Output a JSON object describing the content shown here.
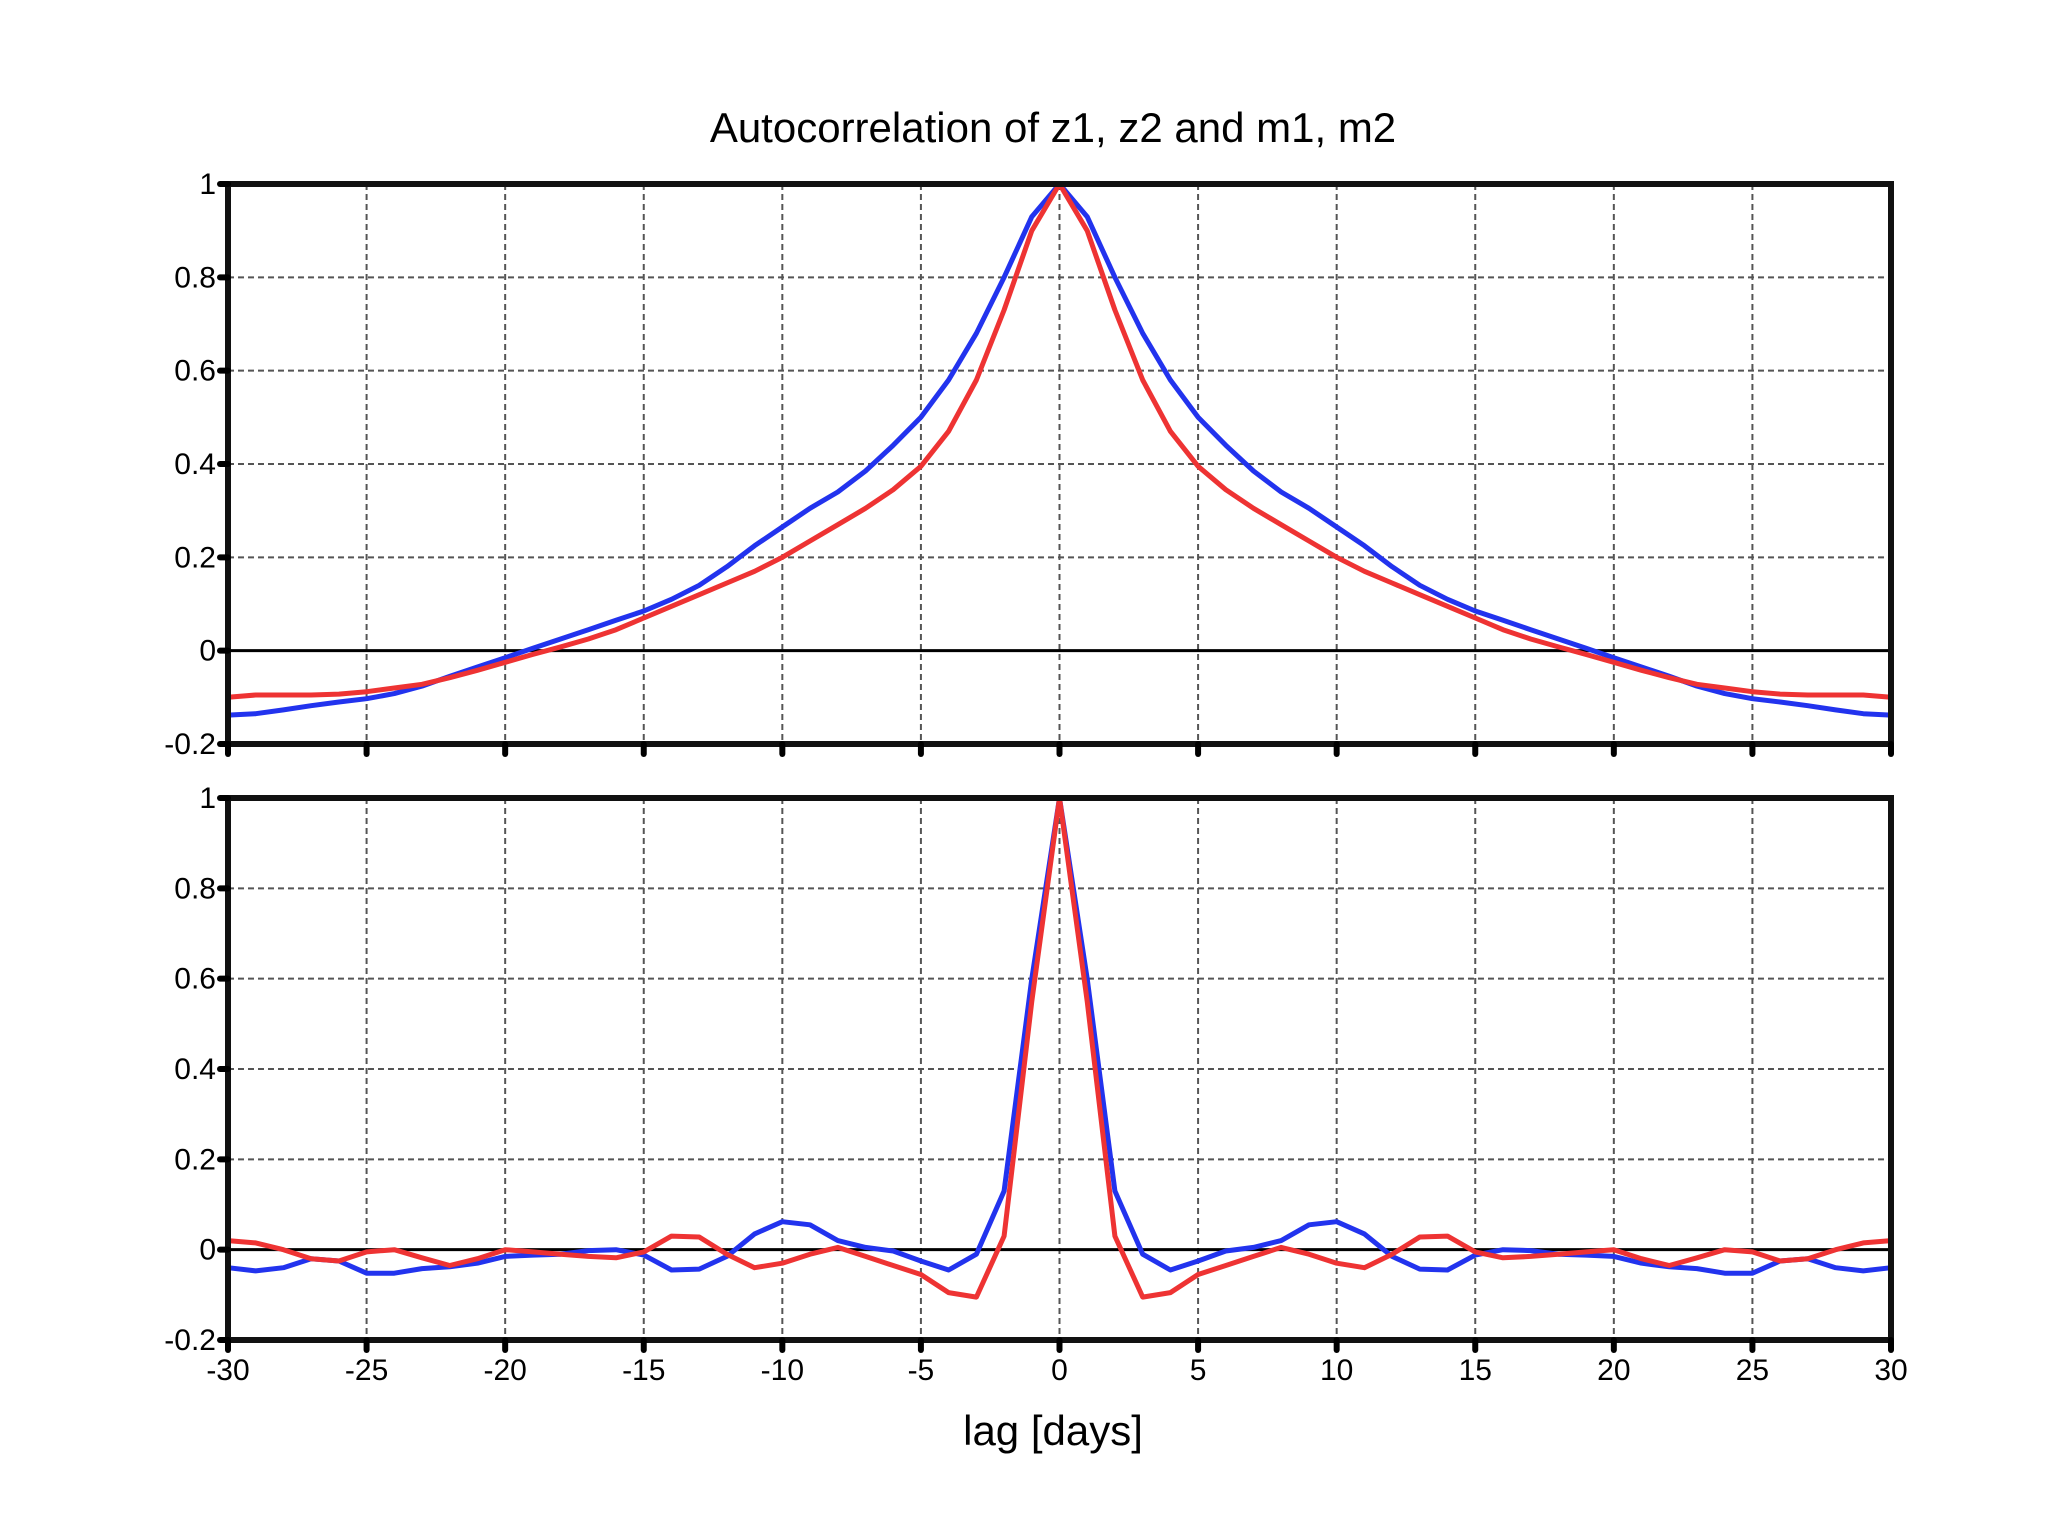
{
  "chart_data": [
    {
      "type": "line",
      "title": "Autocorrelation of z1, z2 and m1, m2",
      "xlabel": "",
      "ylabel": "",
      "xlim": [
        -30,
        30
      ],
      "ylim": [
        -0.2,
        1
      ],
      "xticks": [
        -30,
        -25,
        -20,
        -15,
        -10,
        -5,
        0,
        5,
        10,
        15,
        20,
        25,
        30
      ],
      "yticks": [
        -0.2,
        0,
        0.2,
        0.4,
        0.6,
        0.8,
        1
      ],
      "ytick_labels": [
        "-0.2",
        "0",
        "0.2",
        "0.4",
        "0.6",
        "0.8",
        "1"
      ],
      "grid": true,
      "x": [
        -30,
        -29,
        -28,
        -27,
        -26,
        -25,
        -24,
        -23,
        -22,
        -21,
        -20,
        -19,
        -18,
        -17,
        -16,
        -15,
        -14,
        -13,
        -12,
        -11,
        -10,
        -9,
        -8,
        -7,
        -6,
        -5,
        -4,
        -3,
        -2,
        -1,
        0,
        1,
        2,
        3,
        4,
        5,
        6,
        7,
        8,
        9,
        10,
        11,
        12,
        13,
        14,
        15,
        16,
        17,
        18,
        19,
        20,
        21,
        22,
        23,
        24,
        25,
        26,
        27,
        28,
        29,
        30
      ],
      "series": [
        {
          "color": "#2233ee",
          "values": [
            -0.138,
            -0.135,
            -0.127,
            -0.118,
            -0.11,
            -0.103,
            -0.092,
            -0.076,
            -0.055,
            -0.035,
            -0.015,
            0.005,
            0.025,
            0.045,
            0.065,
            0.085,
            0.11,
            0.14,
            0.18,
            0.225,
            0.265,
            0.305,
            0.34,
            0.385,
            0.44,
            0.5,
            0.58,
            0.68,
            0.8,
            0.93,
            1.0,
            0.93,
            0.8,
            0.68,
            0.58,
            0.5,
            0.44,
            0.385,
            0.34,
            0.305,
            0.265,
            0.225,
            0.18,
            0.14,
            0.11,
            0.085,
            0.065,
            0.045,
            0.025,
            0.005,
            -0.015,
            -0.035,
            -0.055,
            -0.076,
            -0.092,
            -0.103,
            -0.11,
            -0.118,
            -0.127,
            -0.135,
            -0.138
          ]
        },
        {
          "color": "#ee3333",
          "values": [
            -0.1,
            -0.095,
            -0.095,
            -0.095,
            -0.093,
            -0.088,
            -0.08,
            -0.072,
            -0.058,
            -0.042,
            -0.025,
            -0.008,
            0.008,
            0.025,
            0.045,
            0.07,
            0.095,
            0.12,
            0.145,
            0.17,
            0.2,
            0.235,
            0.27,
            0.305,
            0.345,
            0.395,
            0.47,
            0.58,
            0.73,
            0.9,
            1.0,
            0.9,
            0.73,
            0.58,
            0.47,
            0.395,
            0.345,
            0.305,
            0.27,
            0.235,
            0.2,
            0.17,
            0.145,
            0.12,
            0.095,
            0.07,
            0.045,
            0.025,
            0.008,
            -0.008,
            -0.025,
            -0.042,
            -0.058,
            -0.072,
            -0.08,
            -0.088,
            -0.093,
            -0.095,
            -0.095,
            -0.095,
            -0.1
          ]
        }
      ]
    },
    {
      "type": "line",
      "title": "",
      "xlabel": "lag [days]",
      "ylabel": "",
      "xlim": [
        -30,
        30
      ],
      "ylim": [
        -0.2,
        1
      ],
      "xticks": [
        -30,
        -25,
        -20,
        -15,
        -10,
        -5,
        0,
        5,
        10,
        15,
        20,
        25,
        30
      ],
      "xtick_labels": [
        "-30",
        "-25",
        "-20",
        "-15",
        "-10",
        "-5",
        "0",
        "5",
        "10",
        "15",
        "20",
        "25",
        "30"
      ],
      "yticks": [
        -0.2,
        0,
        0.2,
        0.4,
        0.6,
        0.8,
        1
      ],
      "ytick_labels": [
        "-0.2",
        "0",
        "0.2",
        "0.4",
        "0.6",
        "0.8",
        "1"
      ],
      "grid": true,
      "x": [
        -30,
        -29,
        -28,
        -27,
        -26,
        -25,
        -24,
        -23,
        -22,
        -21,
        -20,
        -19,
        -18,
        -17,
        -16,
        -15,
        -14,
        -13,
        -12,
        -11,
        -10,
        -9,
        -8,
        -7,
        -6,
        -5,
        -4,
        -3,
        -2,
        -1,
        0,
        1,
        2,
        3,
        4,
        5,
        6,
        7,
        8,
        9,
        10,
        11,
        12,
        13,
        14,
        15,
        16,
        17,
        18,
        19,
        20,
        21,
        22,
        23,
        24,
        25,
        26,
        27,
        28,
        29,
        30
      ],
      "series": [
        {
          "color": "#2233ee",
          "values": [
            -0.04,
            -0.047,
            -0.04,
            -0.02,
            -0.025,
            -0.052,
            -0.052,
            -0.042,
            -0.038,
            -0.03,
            -0.015,
            -0.012,
            -0.01,
            -0.002,
            0.0,
            -0.012,
            -0.045,
            -0.043,
            -0.015,
            0.035,
            0.062,
            0.055,
            0.02,
            0.005,
            -0.003,
            -0.025,
            -0.045,
            -0.01,
            0.13,
            0.6,
            1.0,
            0.6,
            0.13,
            -0.01,
            -0.045,
            -0.025,
            -0.003,
            0.005,
            0.02,
            0.055,
            0.062,
            0.035,
            -0.015,
            -0.043,
            -0.045,
            -0.012,
            0.0,
            -0.002,
            -0.01,
            -0.012,
            -0.015,
            -0.03,
            -0.038,
            -0.042,
            -0.052,
            -0.052,
            -0.025,
            -0.02,
            -0.04,
            -0.047,
            -0.04
          ]
        },
        {
          "color": "#ee3333",
          "values": [
            0.02,
            0.015,
            0.0,
            -0.02,
            -0.025,
            -0.005,
            0.0,
            -0.018,
            -0.035,
            -0.02,
            0.0,
            -0.005,
            -0.01,
            -0.015,
            -0.018,
            -0.005,
            0.03,
            0.028,
            -0.01,
            -0.04,
            -0.03,
            -0.01,
            0.005,
            -0.015,
            -0.035,
            -0.055,
            -0.095,
            -0.105,
            0.03,
            0.55,
            1.0,
            0.55,
            0.03,
            -0.105,
            -0.095,
            -0.055,
            -0.035,
            -0.015,
            0.005,
            -0.01,
            -0.03,
            -0.04,
            -0.01,
            0.028,
            0.03,
            -0.005,
            -0.018,
            -0.015,
            -0.01,
            -0.005,
            0.0,
            -0.02,
            -0.035,
            -0.018,
            0.0,
            -0.005,
            -0.025,
            -0.02,
            0.0,
            0.015,
            0.02
          ]
        }
      ]
    }
  ]
}
